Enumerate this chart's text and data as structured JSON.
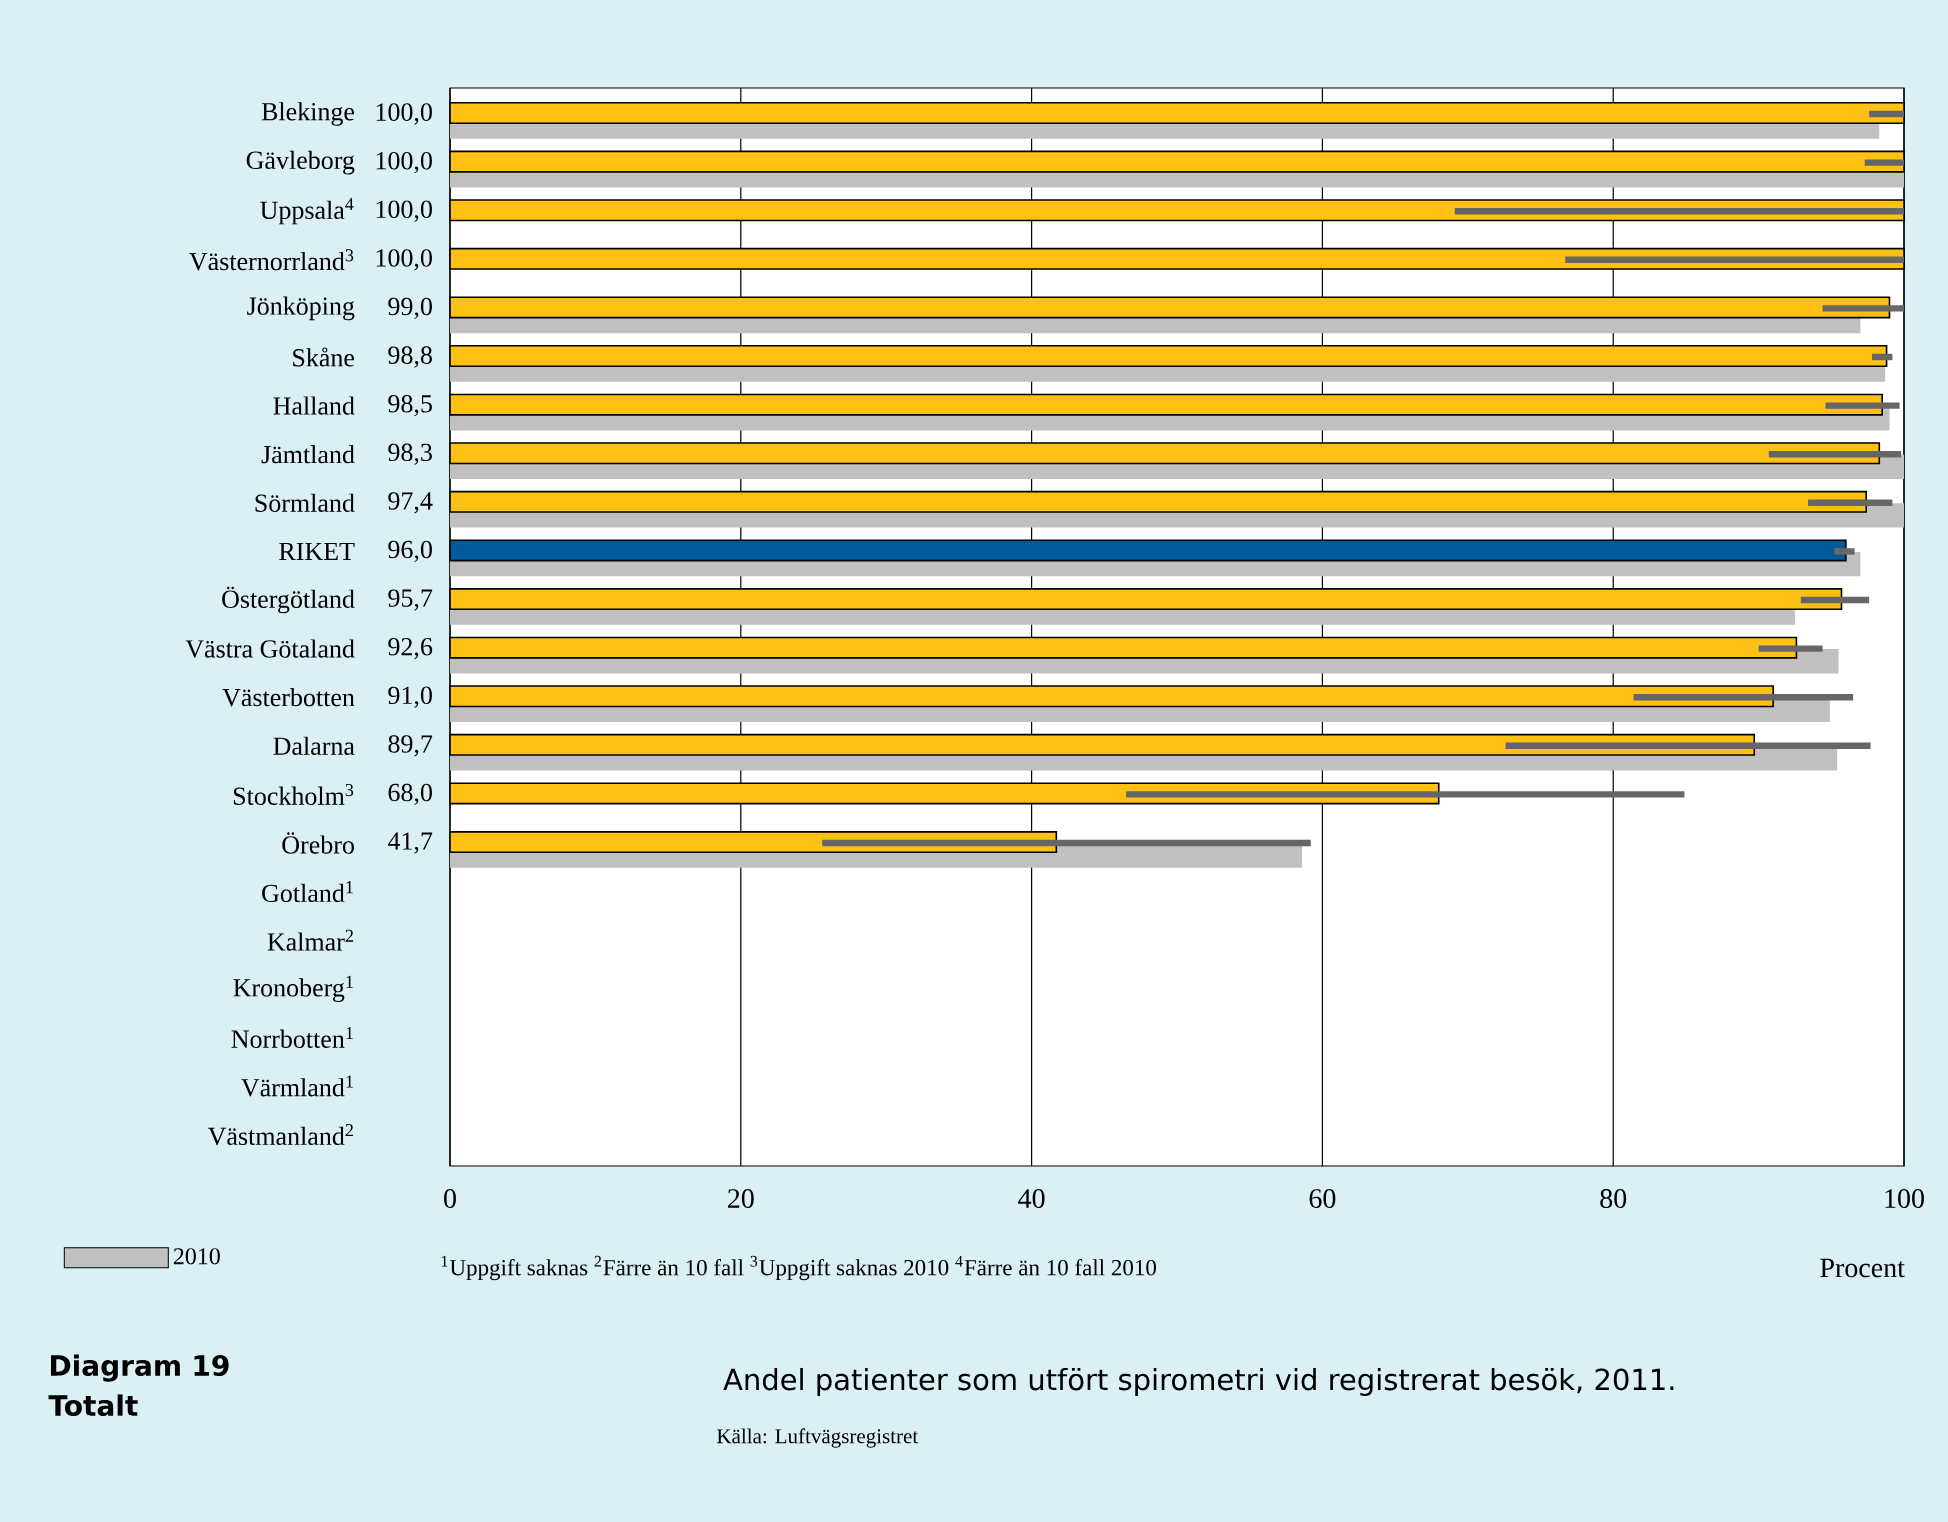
{
  "chart_data": {
    "type": "bar",
    "orientation": "horizontal",
    "title": "Andel patienter som utfört spirometri vid registrerat besök, 2011.",
    "xlabel": "Procent",
    "categories": [
      "Blekinge",
      "Gävleborg",
      "Uppsala$^{4}$",
      "Västernorrland$^{3}$",
      "Jönköping",
      "Skåne",
      "Halland",
      "Jämtland",
      "Sörmland",
      "RIKET",
      "Östergötland",
      "Västra Götaland",
      "Västerbotten",
      "Dalarna",
      "Stockholm$^{3}$",
      "Örebro",
      "Gotland$^{1}$",
      "Kalmar$^{2}$",
      "Kronoberg$^{1}$",
      "Norrbotten$^{1}$",
      "Värmland$^{1}$",
      "Västmanland$^{2}$"
    ],
    "series": [
      {
        "colors": [
          "#ffc014",
          "#ffc014",
          "#ffc014",
          "#ffc014",
          "#ffc014",
          "#ffc014",
          "#ffc014",
          "#ffc014",
          "#ffc014",
          "#005a9c",
          "#ffc014",
          "#ffc014",
          "#ffc014",
          "#ffc014",
          "#ffc014",
          "#ffc014",
          "#ffc014",
          "#ffc014",
          "#ffc014",
          "#ffc014",
          "#ffc014",
          "#ffc014"
        ],
        "values": [
          100.0,
          100.0,
          100.0,
          100.0,
          99.0,
          98.8,
          98.5,
          98.3,
          97.4,
          96.0,
          95.7,
          92.6,
          91.0,
          89.7,
          68.0,
          41.7,
          null,
          null,
          null,
          null,
          null,
          null
        ],
        "value_labels": [
          "100,0",
          "100,0",
          "100,0",
          "100,0",
          "99,0",
          "98,8",
          "98,5",
          "98,3",
          "97,4",
          "96,0",
          "95,7",
          "92,6",
          "91,0",
          "89,7",
          "68,0",
          "41,7",
          null,
          null,
          null,
          null,
          null,
          null
        ],
        "errors": [
          [
            97.6,
            100
          ],
          [
            97.3,
            100
          ],
          [
            69.1,
            100
          ],
          [
            76.7,
            100
          ],
          [
            94.4,
            100
          ],
          [
            97.8,
            99.2
          ],
          [
            94.6,
            99.7
          ],
          [
            90.7,
            99.8
          ],
          [
            93.4,
            99.2
          ],
          [
            95.2,
            96.6
          ],
          [
            92.9,
            97.6
          ],
          [
            90.0,
            94.4
          ],
          [
            81.4,
            96.5
          ],
          [
            72.6,
            97.7
          ],
          [
            46.5,
            84.9
          ],
          [
            25.6,
            59.2
          ],
          null,
          null,
          null,
          null,
          null,
          null
        ]
      },
      {
        "name": "2010",
        "color": "#c0c0c0",
        "values": [
          98.3,
          100,
          null,
          null,
          97.0,
          98.7,
          99.0,
          100,
          100,
          97.0,
          92.5,
          95.5,
          94.9,
          95.4,
          null,
          58.6,
          null,
          null,
          null,
          null,
          null,
          null
        ]
      }
    ],
    "xlim": [
      0,
      100
    ],
    "xticks": [
      0,
      20,
      40,
      60,
      80,
      100
    ],
    "grid": "x",
    "legend": "bottom left",
    "annotations": [
      "$^{1}$Uppgift saknas $^{2}$Färre än 10 fall $^{3}$Uppgift saknas 2010 $^{4}$Färre än 10 fall 2010",
      "Diagram 19 Totalt",
      "Källa: Luftvägsregistret"
    ]
  }
}
